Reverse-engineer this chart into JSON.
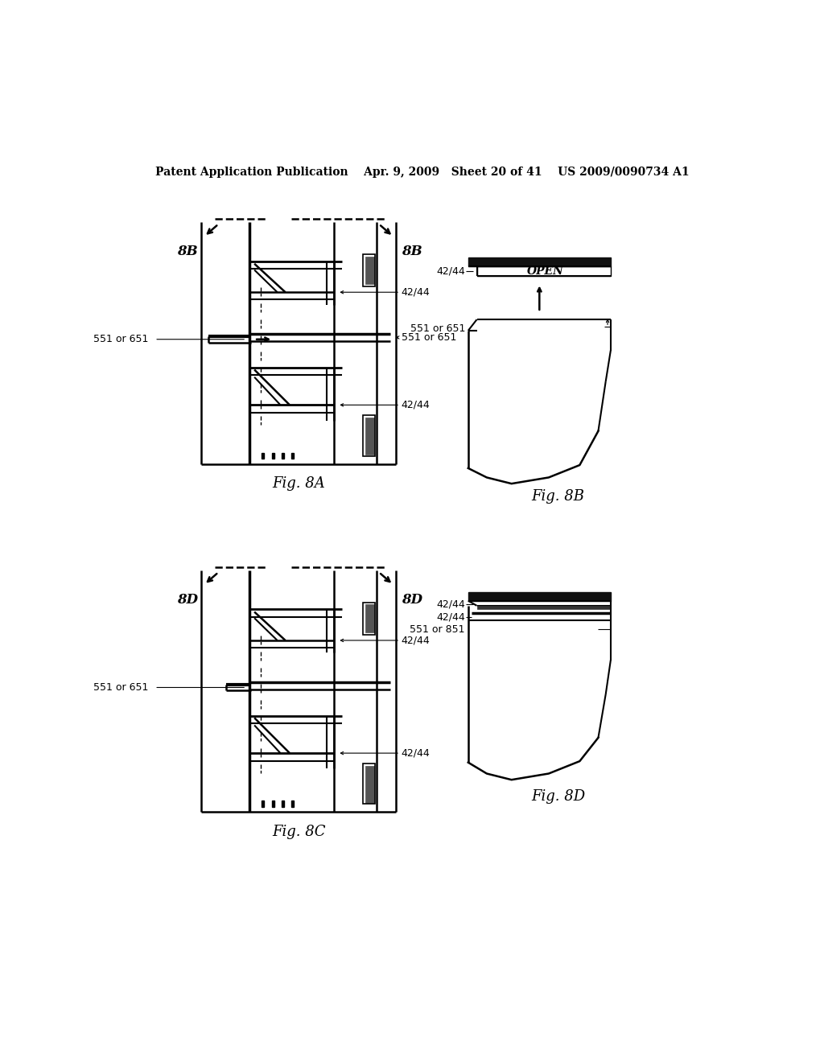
{
  "bg_color": "#ffffff",
  "header": "Patent Application Publication    Apr. 9, 2009   Sheet 20 of 41    US 2009/0090734 A1",
  "fig8A_label": "Fig. 8A",
  "fig8B_label": "Fig. 8B",
  "fig8C_label": "Fig. 8C",
  "fig8D_label": "Fig. 8D",
  "label_8B": "8B",
  "label_8D": "8D",
  "label_42_44": "42/44",
  "label_551_651": "551 or 651",
  "label_551_851": "551 or 851",
  "label_open": "OPEN"
}
